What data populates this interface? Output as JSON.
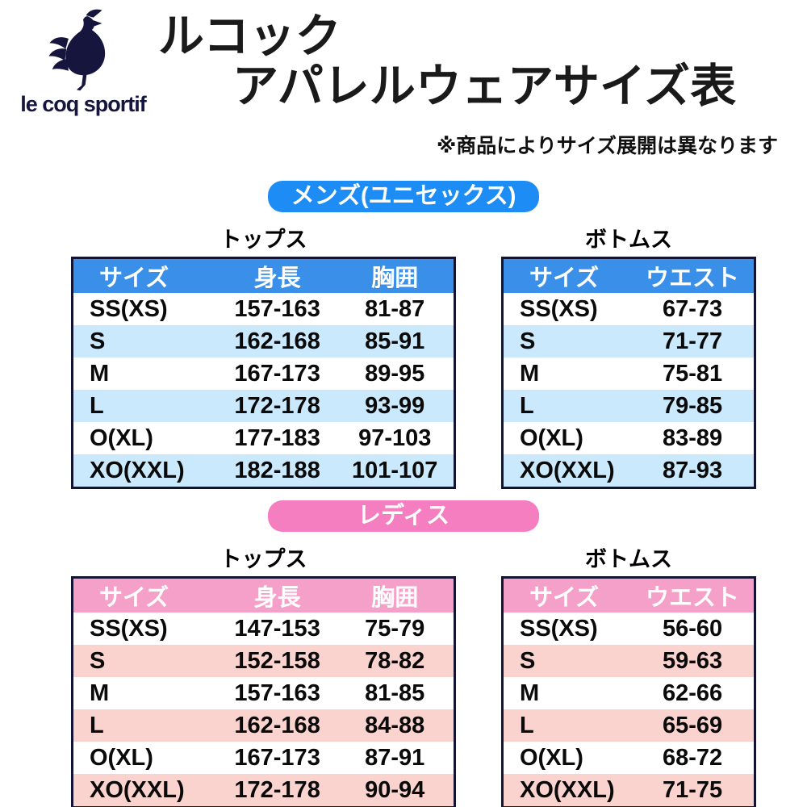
{
  "brand": {
    "wordmark": "le coq sportif",
    "logo_color": "#15153d"
  },
  "header": {
    "title_line1": "ルコック",
    "title_line2": "アパレルウェアサイズ表",
    "note": "※商品によりサイズ展開は異なります"
  },
  "table_border_color": "#131334",
  "sections": [
    {
      "label": "メンズ(ユニセックス)",
      "colors": {
        "pill": "#1e8cf5",
        "header": "#3a8fe8",
        "stripe": "#cbe9fc"
      },
      "tables": [
        {
          "caption": "トップス",
          "columns": [
            "サイズ",
            "身長",
            "胸囲"
          ],
          "rows": [
            [
              "SS(XS)",
              "157-163",
              "81-87"
            ],
            [
              "S",
              "162-168",
              "85-91"
            ],
            [
              "M",
              "167-173",
              "89-95"
            ],
            [
              "L",
              "172-178",
              "93-99"
            ],
            [
              "O(XL)",
              "177-183",
              "97-103"
            ],
            [
              "XO(XXL)",
              "182-188",
              "101-107"
            ]
          ]
        },
        {
          "caption": "ボトムス",
          "columns": [
            "サイズ",
            "ウエスト"
          ],
          "rows": [
            [
              "SS(XS)",
              "67-73"
            ],
            [
              "S",
              "71-77"
            ],
            [
              "M",
              "75-81"
            ],
            [
              "L",
              "79-85"
            ],
            [
              "O(XL)",
              "83-89"
            ],
            [
              "XO(XXL)",
              "87-93"
            ]
          ]
        }
      ]
    },
    {
      "label": "レディス",
      "colors": {
        "pill": "#f57ec0",
        "header": "#f5a0c9",
        "stripe": "#fad3cf"
      },
      "tables": [
        {
          "caption": "トップス",
          "columns": [
            "サイズ",
            "身長",
            "胸囲"
          ],
          "rows": [
            [
              "SS(XS)",
              "147-153",
              "75-79"
            ],
            [
              "S",
              "152-158",
              "78-82"
            ],
            [
              "M",
              "157-163",
              "81-85"
            ],
            [
              "L",
              "162-168",
              "84-88"
            ],
            [
              "O(XL)",
              "167-173",
              "87-91"
            ],
            [
              "XO(XXL)",
              "172-178",
              "90-94"
            ]
          ]
        },
        {
          "caption": "ボトムス",
          "columns": [
            "サイズ",
            "ウエスト"
          ],
          "rows": [
            [
              "SS(XS)",
              "56-60"
            ],
            [
              "S",
              "59-63"
            ],
            [
              "M",
              "62-66"
            ],
            [
              "L",
              "65-69"
            ],
            [
              "O(XL)",
              "68-72"
            ],
            [
              "XO(XXL)",
              "71-75"
            ]
          ]
        }
      ]
    }
  ]
}
